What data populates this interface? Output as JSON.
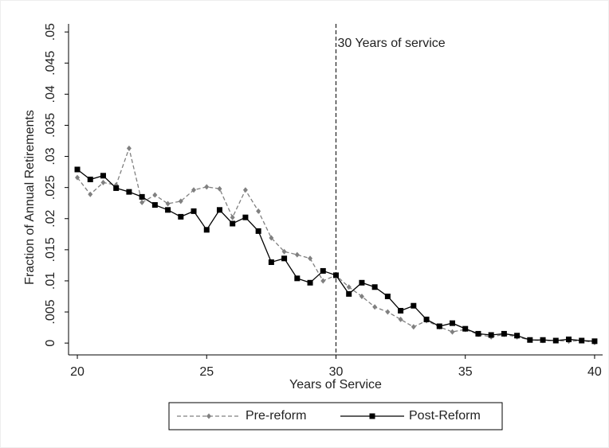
{
  "chart_data": {
    "type": "line",
    "x_label": "Years of Service",
    "y_label": "Fraction of Annual Retirements",
    "x": [
      20,
      20.5,
      21,
      21.5,
      22,
      22.5,
      23,
      23.5,
      24,
      24.5,
      25,
      25.5,
      26,
      26.5,
      27,
      27.5,
      28,
      28.5,
      29,
      29.5,
      30,
      30.5,
      31,
      31.5,
      32,
      32.5,
      33,
      33.5,
      34,
      34.5,
      35,
      35.5,
      36,
      36.5,
      37,
      37.5,
      38,
      38.5,
      39,
      39.5,
      40
    ],
    "series": [
      {
        "name": "Pre-reform",
        "color": "#808080",
        "dash": true,
        "marker": "diamond",
        "values": [
          0.0266,
          0.0239,
          0.0258,
          0.0254,
          0.0313,
          0.0226,
          0.0238,
          0.0224,
          0.0228,
          0.0246,
          0.0251,
          0.0248,
          0.0202,
          0.0246,
          0.0212,
          0.0169,
          0.0147,
          0.0142,
          0.0136,
          0.01,
          0.0109,
          0.009,
          0.0075,
          0.0058,
          0.005,
          0.0038,
          0.0026,
          0.0036,
          0.0026,
          0.0018,
          0.0022,
          0.0014,
          0.001,
          0.0014,
          0.001,
          0.0005,
          0.0004,
          0.0004,
          0.0003,
          0.0004,
          0.0001
        ]
      },
      {
        "name": "Post-Reform",
        "color": "#000000",
        "dash": false,
        "marker": "square",
        "values": [
          0.0279,
          0.0263,
          0.0269,
          0.0249,
          0.0243,
          0.0235,
          0.0222,
          0.0214,
          0.0203,
          0.0212,
          0.0182,
          0.0214,
          0.0192,
          0.0202,
          0.018,
          0.013,
          0.0136,
          0.0104,
          0.0097,
          0.0116,
          0.0109,
          0.0079,
          0.0097,
          0.009,
          0.0075,
          0.0052,
          0.006,
          0.0038,
          0.0027,
          0.0032,
          0.0023,
          0.0015,
          0.0013,
          0.0015,
          0.0012,
          0.0005,
          0.0005,
          0.0004,
          0.0006,
          0.0004,
          0.0003
        ]
      }
    ],
    "xlim": [
      19.66,
      40.31
    ],
    "xticks": [
      20,
      25,
      30,
      35,
      40
    ],
    "ylim": [
      -0.0019,
      0.0513
    ],
    "yticks": [
      0,
      {
        "value": 0.005,
        "label": ".005"
      },
      {
        "value": 0.01,
        "label": ".01"
      },
      {
        "value": 0.015,
        "label": ".015"
      },
      {
        "value": 0.02,
        "label": ".02"
      },
      {
        "value": 0.025,
        "label": ".025"
      },
      {
        "value": 0.03,
        "label": ".03"
      },
      {
        "value": 0.035,
        "label": ".035"
      },
      {
        "value": 0.04,
        "label": ".04"
      },
      {
        "value": 0.045,
        "label": ".045"
      },
      {
        "value": 0.05,
        "label": ".05"
      }
    ],
    "vline": {
      "x": 30,
      "label": "30 Years of service"
    },
    "grid": false,
    "legend": "bottom"
  }
}
